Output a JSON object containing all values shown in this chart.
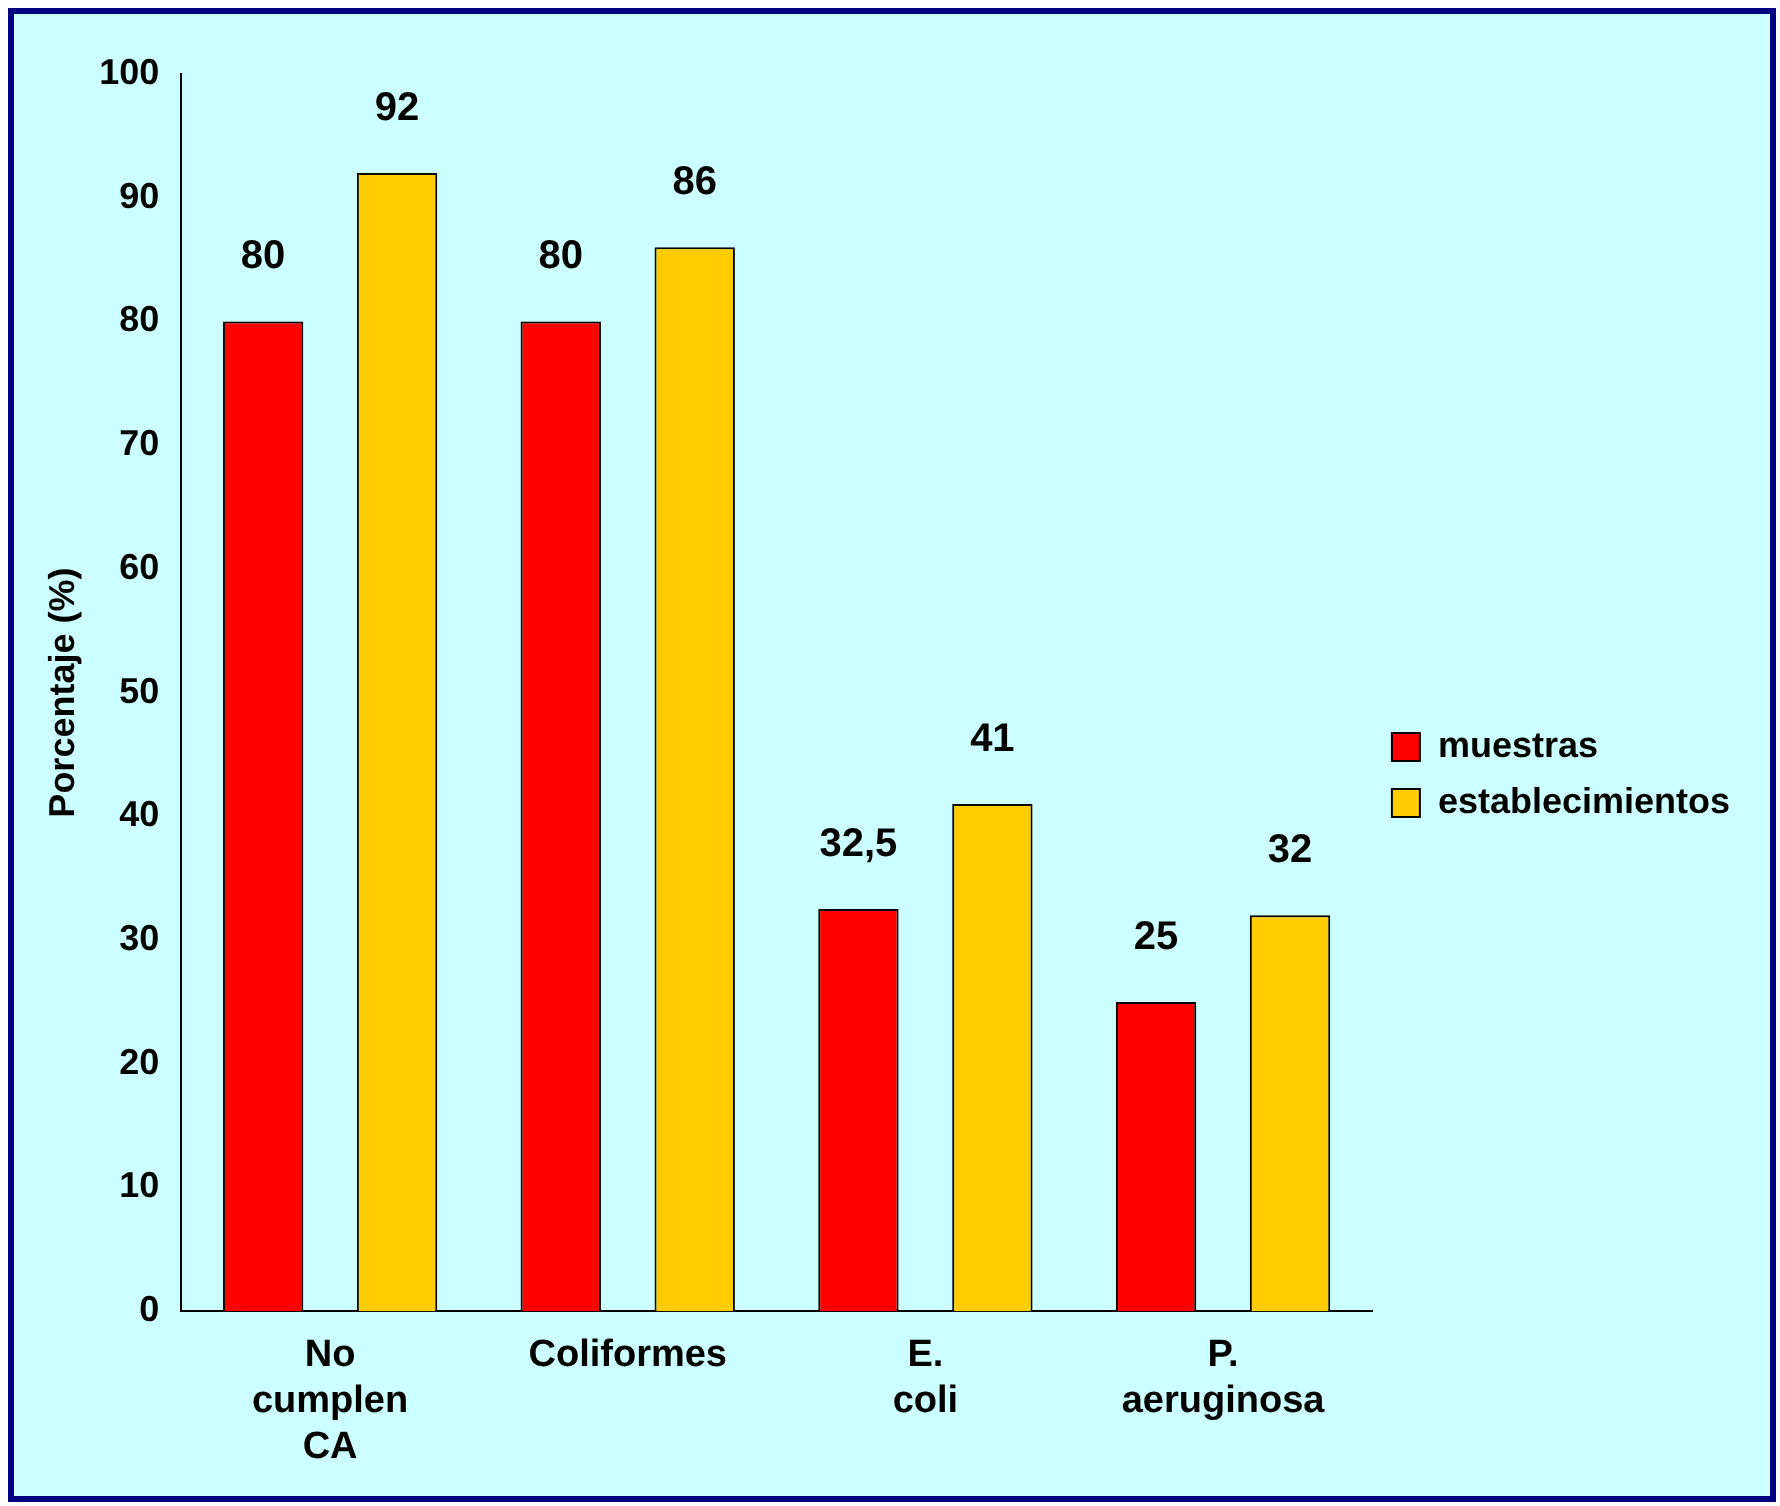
{
  "chart_data": {
    "type": "bar",
    "ylabel": "Porcentaje (%)",
    "categories": [
      "No cumplen CA",
      "Coliformes",
      "E. coli",
      "P. aeruginosa"
    ],
    "series": [
      {
        "name": "muestras",
        "color": "#ff0000",
        "values": [
          80,
          80,
          32.5,
          25
        ],
        "value_labels": [
          "80",
          "80",
          "32,5",
          "25"
        ]
      },
      {
        "name": "establecimientos",
        "color": "#ffcc00",
        "values": [
          92,
          86,
          41,
          32
        ],
        "value_labels": [
          "92",
          "86",
          "41",
          "32"
        ]
      }
    ],
    "ylim": [
      0,
      100
    ],
    "yticks": [
      0,
      10,
      20,
      30,
      40,
      50,
      60,
      70,
      80,
      90,
      100
    ],
    "grid": false,
    "legend": "right"
  }
}
